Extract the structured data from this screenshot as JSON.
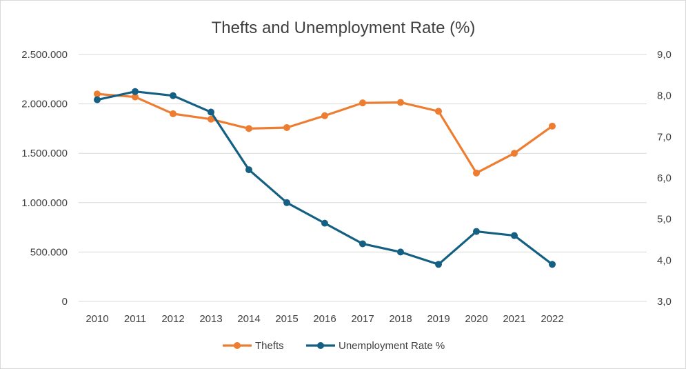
{
  "chart_data": {
    "type": "line",
    "title": "Thefts and Unemployment Rate (%)",
    "categories": [
      "2010",
      "2011",
      "2012",
      "2013",
      "2014",
      "2015",
      "2016",
      "2017",
      "2018",
      "2019",
      "2020",
      "2021",
      "2022"
    ],
    "series": [
      {
        "name": "Thefts",
        "axis": "left",
        "color": "#ed7d31",
        "values": [
          2100000,
          2070000,
          1900000,
          1845000,
          1750000,
          1760000,
          1880000,
          2010000,
          2015000,
          1925000,
          1300000,
          1500000,
          1775000
        ]
      },
      {
        "name": "Unemployment Rate %",
        "axis": "right",
        "color": "#156082",
        "values": [
          7.9,
          8.1,
          8.0,
          7.6,
          6.2,
          5.4,
          4.9,
          4.4,
          4.2,
          3.9,
          4.7,
          4.6,
          3.9
        ]
      }
    ],
    "y_left": {
      "min": 0,
      "max": 2500000,
      "ticks": [
        0,
        500000,
        1000000,
        1500000,
        2000000,
        2500000
      ],
      "tick_labels": [
        "0",
        "500.000",
        "1.000.000",
        "1.500.000",
        "2.000.000",
        "2.500.000"
      ]
    },
    "y_right": {
      "min": 3.0,
      "max": 9.0,
      "ticks": [
        3,
        4,
        5,
        6,
        7,
        8,
        9
      ],
      "tick_labels": [
        "3,0",
        "4,0",
        "5,0",
        "6,0",
        "7,0",
        "8,0",
        "9,0"
      ]
    },
    "grid": true,
    "legend_position": "bottom"
  }
}
